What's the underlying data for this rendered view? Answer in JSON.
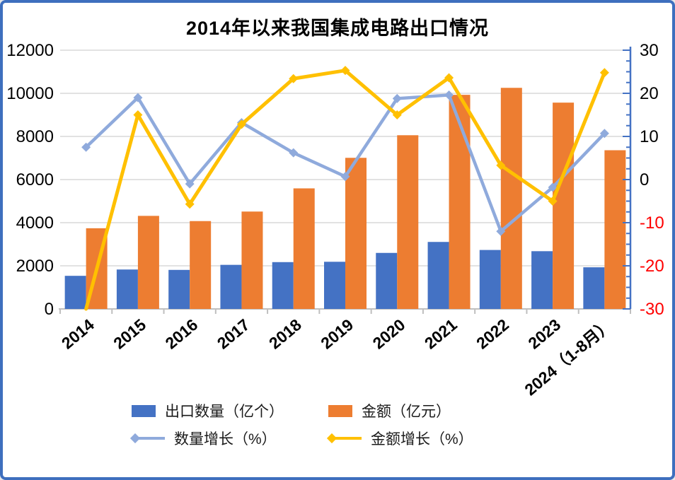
{
  "title": "2014年以来我国集成电路出口情况",
  "colors": {
    "bar_quantity": "#4472c4",
    "bar_amount": "#ed7d31",
    "line_quantity_growth": "#8faadc",
    "line_amount_growth": "#ffc000",
    "grid": "#d9d9d9",
    "x_axis": "#bfbfbf",
    "right_axis": "#4472c4",
    "negative_label": "#ff0000",
    "label_text": "#000000",
    "border": "#3e6fbe"
  },
  "chart_data": {
    "type": "combo_bar_line",
    "title": "2014年以来我国集成电路出口情况",
    "categories": [
      "2014",
      "2015",
      "2016",
      "2017",
      "2018",
      "2019",
      "2020",
      "2021",
      "2022",
      "2023",
      "2024（1-8月）"
    ],
    "series": [
      {
        "name": "出口数量（亿个）",
        "type": "bar",
        "axis": "left",
        "color": "#4472c4",
        "values": [
          1535,
          1828,
          1810,
          2044,
          2171,
          2187,
          2598,
          3107,
          2734,
          2678,
          1931
        ]
      },
      {
        "name": "金额（亿元）",
        "type": "bar",
        "axis": "left",
        "color": "#ed7d31",
        "values": [
          3742,
          4316,
          4074,
          4516,
          5591,
          7008,
          8056,
          9930,
          10254,
          9568,
          7360
        ]
      },
      {
        "name": "数量增长（%）",
        "type": "line",
        "axis": "right",
        "color": "#8faadc",
        "values": [
          7.5,
          19.0,
          -1.0,
          13.2,
          6.2,
          0.7,
          18.8,
          19.6,
          -12.0,
          -1.8,
          10.7
        ]
      },
      {
        "name": "金额增长（%）",
        "type": "line",
        "axis": "right",
        "color": "#ffc000",
        "values": [
          -30.0,
          15.0,
          -5.7,
          12.8,
          23.4,
          25.3,
          15.0,
          23.6,
          3.3,
          -5.0,
          24.8
        ]
      }
    ],
    "left_axis": {
      "min": 0,
      "max": 12000,
      "step": 2000,
      "ticks": [
        "0",
        "2000",
        "4000",
        "6000",
        "8000",
        "10000",
        "12000"
      ]
    },
    "right_axis": {
      "min": -30,
      "max": 30,
      "step": 10,
      "minor_step": 2.5,
      "ticks": [
        "-30",
        "-20",
        "-10",
        "0",
        "10",
        "20",
        "30"
      ]
    },
    "grid": true,
    "legend_position": "bottom"
  },
  "legend": {
    "items": [
      {
        "label": "出口数量（亿个）",
        "swatch": "bar",
        "color": "#4472c4"
      },
      {
        "label": "金额（亿元）",
        "swatch": "bar",
        "color": "#ed7d31"
      },
      {
        "label": "数量增长（%）",
        "swatch": "line",
        "color": "#8faadc"
      },
      {
        "label": "金额增长（%）",
        "swatch": "line",
        "color": "#ffc000"
      }
    ]
  }
}
